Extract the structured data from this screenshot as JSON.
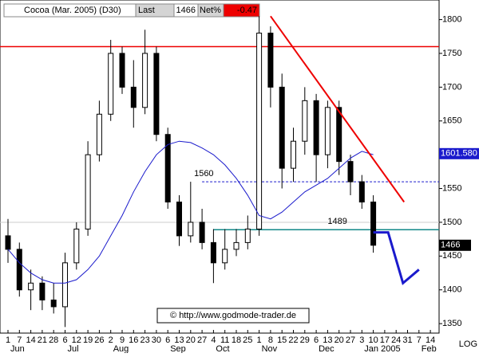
{
  "header": {
    "title": "Cocoa (Mar. 2005) (D30)",
    "last_label": "Last",
    "last": 1466,
    "net_label": "Net%",
    "net": -0.47
  },
  "chart_data": {
    "type": "candlestick",
    "categories": [
      "1",
      "7",
      "14",
      "21",
      "28",
      "6",
      "12",
      "19",
      "26",
      "2",
      "9",
      "16",
      "23",
      "30",
      "6",
      "13",
      "20",
      "27",
      "4",
      "11",
      "18",
      "25",
      "1",
      "8",
      "15",
      "22",
      "29",
      "6",
      "13",
      "20",
      "27",
      "3",
      "10",
      "17",
      "24",
      "31",
      "7",
      "14"
    ],
    "months": [
      "Jun",
      "Jul",
      "Aug",
      "Sep",
      "Oct",
      "Nov",
      "Dec",
      "Jan 2005",
      "Feb"
    ],
    "open": [
      1480,
      1460,
      1400,
      1410,
      1385,
      1375,
      1440,
      1490,
      1600,
      1660,
      1750,
      1700,
      1670,
      1750,
      1630,
      1530,
      1480,
      1500,
      1470,
      1440,
      1460,
      1470,
      1490,
      1780,
      1700,
      1580,
      1620,
      1680,
      1600,
      1670,
      1590,
      1560,
      1530,
      null,
      null,
      null,
      null,
      null
    ],
    "high": [
      1505,
      1470,
      1430,
      1420,
      1410,
      1455,
      1500,
      1620,
      1680,
      1770,
      1760,
      1740,
      1785,
      1760,
      1640,
      1540,
      1560,
      1520,
      1490,
      1490,
      1490,
      1510,
      1805,
      1790,
      1720,
      1640,
      1700,
      1690,
      1680,
      1680,
      1600,
      1570,
      1540,
      null,
      null,
      null,
      null,
      null
    ],
    "low": [
      1440,
      1390,
      1370,
      1370,
      1365,
      1345,
      1430,
      1480,
      1590,
      1650,
      1690,
      1640,
      1660,
      1620,
      1520,
      1465,
      1470,
      1460,
      1410,
      1430,
      1450,
      1460,
      1480,
      1670,
      1550,
      1560,
      1600,
      1560,
      1580,
      1570,
      1540,
      1520,
      1455,
      null,
      null,
      null,
      null,
      null
    ],
    "close": [
      1460,
      1400,
      1410,
      1385,
      1375,
      1440,
      1490,
      1600,
      1660,
      1750,
      1700,
      1670,
      1750,
      1630,
      1530,
      1480,
      1500,
      1470,
      1440,
      1460,
      1470,
      1490,
      1780,
      1700,
      1580,
      1620,
      1680,
      1600,
      1670,
      1590,
      1560,
      1530,
      1466,
      null,
      null,
      null,
      null,
      null
    ],
    "ma": [
      1460,
      1440,
      1425,
      1415,
      1410,
      1410,
      1415,
      1430,
      1450,
      1480,
      1510,
      1545,
      1575,
      1600,
      1615,
      1620,
      1618,
      1610,
      1600,
      1585,
      1565,
      1540,
      1510,
      1505,
      1515,
      1530,
      1545,
      1555,
      1565,
      1580,
      1595,
      1605,
      1600,
      null,
      null,
      null,
      null,
      null
    ],
    "ma_color": "#1a1acc",
    "ma_last": {
      "value": 1601.58,
      "label": "1601.580"
    },
    "resistance": 1760,
    "level": 1560,
    "support": 1489,
    "trendline": [
      1805,
      1530
    ],
    "forecast": [
      1485,
      1485,
      1410,
      1430
    ],
    "ylim": [
      1336,
      1829
    ],
    "yticks": [
      1350,
      1400,
      1450,
      1500,
      1550,
      1600,
      1650,
      1700,
      1750,
      1800
    ],
    "scale_label": "LOG",
    "watermark": "© http://www.godmode-trader.de"
  }
}
